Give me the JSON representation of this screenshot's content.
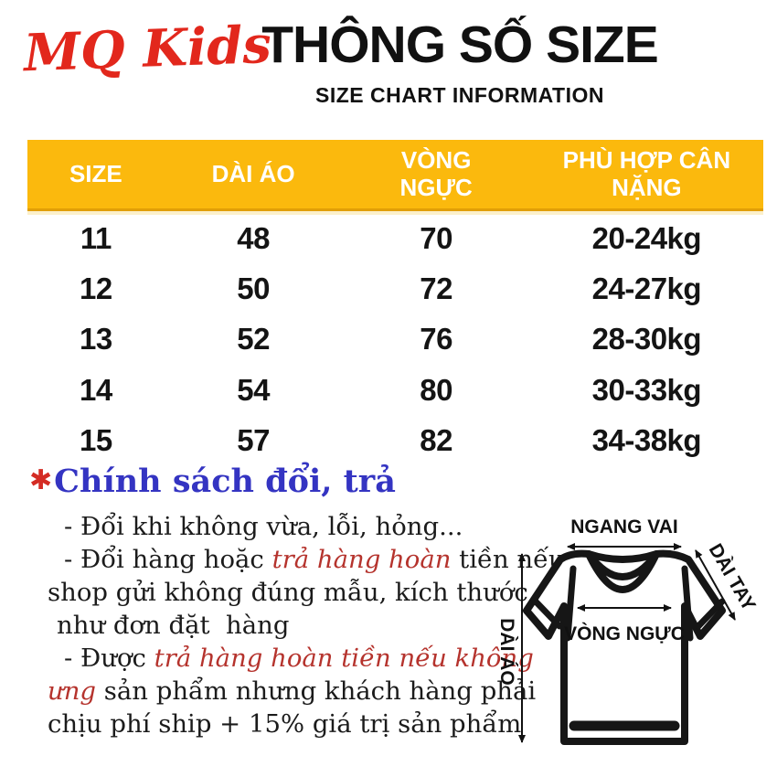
{
  "header": {
    "logo": "MQ Kids",
    "title": "THÔNG SỐ SIZE",
    "subtitle": "SIZE CHART INFORMATION"
  },
  "size_table": {
    "columns": [
      "SIZE",
      "DÀI ÁO",
      "VÒNG\nNGỰC",
      "PHÙ HỢP CÂN\nNẶNG"
    ],
    "rows": [
      [
        "11",
        "48",
        "70",
        "20-24kg"
      ],
      [
        "12",
        "50",
        "72",
        "24-27kg"
      ],
      [
        "13",
        "52",
        "76",
        "28-30kg"
      ],
      [
        "14",
        "54",
        "80",
        "30-33kg"
      ],
      [
        "15",
        "57",
        "82",
        "34-38kg"
      ]
    ]
  },
  "policy": {
    "marker": "✱",
    "title": "Chính sách đổi, trả",
    "lines": [
      {
        "indent": "a",
        "segments": [
          {
            "text": "- Đổi khi không vừa, lỗi, hỏng..."
          }
        ]
      },
      {
        "indent": "a",
        "segments": [
          {
            "text": "- Đổi hàng hoặc "
          },
          {
            "text": "trả hàng hoàn",
            "red": true
          },
          {
            "text": " tiền nếu"
          }
        ]
      },
      {
        "indent": "b",
        "segments": [
          {
            "text": "shop gửi không đúng mẫu, kích thước"
          }
        ]
      },
      {
        "indent": "c",
        "segments": [
          {
            "text": "như đơn đặt  hàng"
          }
        ]
      },
      {
        "indent": "a",
        "segments": [
          {
            "text": "- Được "
          },
          {
            "text": "trả hàng hoàn tiền nếu không",
            "red": true
          }
        ]
      },
      {
        "indent": "b",
        "segments": [
          {
            "text": "ưng",
            "red": true
          },
          {
            "text": " sản phẩm nhưng khách hàng phải"
          }
        ]
      },
      {
        "indent": "b",
        "segments": [
          {
            "text": "chịu phí ship + 15% giá trị sản phẩm"
          }
        ]
      }
    ]
  },
  "diagram": {
    "shoulder_label": "NGANG VAI",
    "sleeve_label": "DÀI TAY",
    "length_label": "DÀI ÁO",
    "chest_label": "VÒNG NGỰC"
  },
  "colors": {
    "table_header_bg": "#FBB90D",
    "table_header_border": "#E19E06",
    "logo_red": "#E2271C",
    "policy_title_blue": "#3434C2",
    "policy_red": "#B5332D",
    "asterisk_red": "#D42C24"
  }
}
